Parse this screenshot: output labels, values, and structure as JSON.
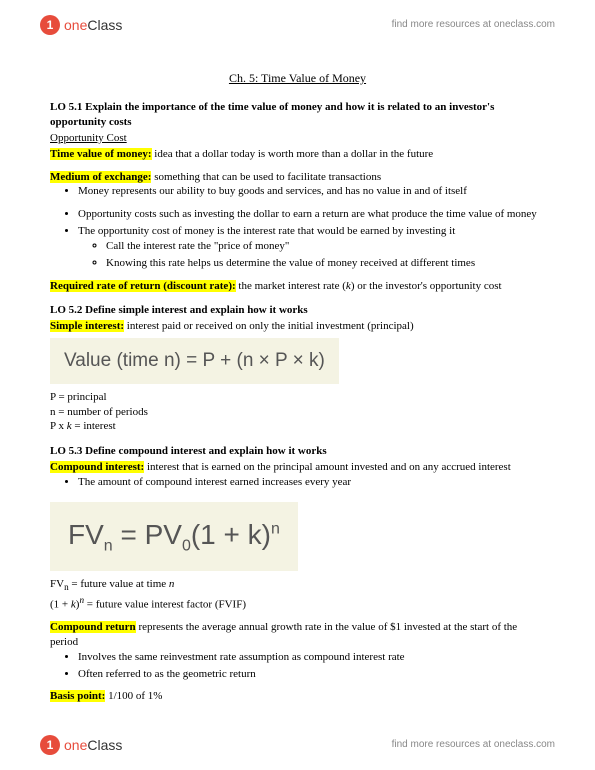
{
  "brand": {
    "logo_text_a": "one",
    "logo_text_b": "Class",
    "tagline": "find more resources at oneclass.com"
  },
  "chapter_title": "Ch. 5: Time Value of Money",
  "lo51": {
    "heading": "LO 5.1 Explain the importance of the time value of money and how it is related to an investor's opportunity costs",
    "sub": "Opportunity Cost",
    "tvm_term": "Time value of money:",
    "tvm_def": " idea that a dollar today is worth more than a dollar in the future",
    "moe_term": "Medium of exchange:",
    "moe_def": " something that can be used to facilitate transactions",
    "moe_b1": "Money represents our ability to buy goods and services, and has no value in and of itself",
    "b1": "Opportunity costs such as investing the dollar to earn a return are what produce the time value of money",
    "b2": "The opportunity cost of money is the interest rate that would be earned by investing it",
    "b2a": "Call the interest rate the \"price of money\"",
    "b2b": "Knowing this rate helps us determine the value of money received at different times",
    "rrr_term": "Required rate of return (discount rate):",
    "rrr_def_a": " the market interest rate (",
    "rrr_def_k": "k",
    "rrr_def_b": ") or the investor's opportunity cost"
  },
  "lo52": {
    "heading": "LO 5.2 Define simple interest and explain how it works",
    "si_term": "Simple interest:",
    "si_def": " interest paid or received on only the initial investment (principal)",
    "formula": "Value (time n)  =  P  +  (n × P × k)",
    "d1": "P = principal",
    "d2": "n = number of periods",
    "d3_a": "P x ",
    "d3_k": "k",
    "d3_b": " = interest"
  },
  "lo53": {
    "heading": "LO 5.3 Define compound interest and explain how it works",
    "ci_term": "Compound interest:",
    "ci_def": " interest that is earned on the principal amount invested and on any accrued interest",
    "b1": "The amount of compound interest earned increases every year",
    "f_fv": "FV",
    "f_n": "n",
    "f_eq": " = PV",
    "f_0": "0",
    "f_paren": "(1 + k)",
    "f_exp": "n",
    "d1_a": "FV",
    "d1_n": "n",
    "d1_b": " = future value at time ",
    "d1_c": "n",
    "d2_a": "(1 + ",
    "d2_k": "k",
    "d2_b": ")",
    "d2_n": "n",
    "d2_c": " = future value interest factor (FVIF)",
    "cr_term": "Compound return",
    "cr_def": " represents the average annual growth rate in the value of $1 invested at the start of the period",
    "cr_b1": "Involves the same reinvestment rate assumption as compound interest rate",
    "cr_b2": "Often referred to as the geometric return",
    "bp_term": "Basis point:",
    "bp_def": " 1/100 of 1%"
  }
}
